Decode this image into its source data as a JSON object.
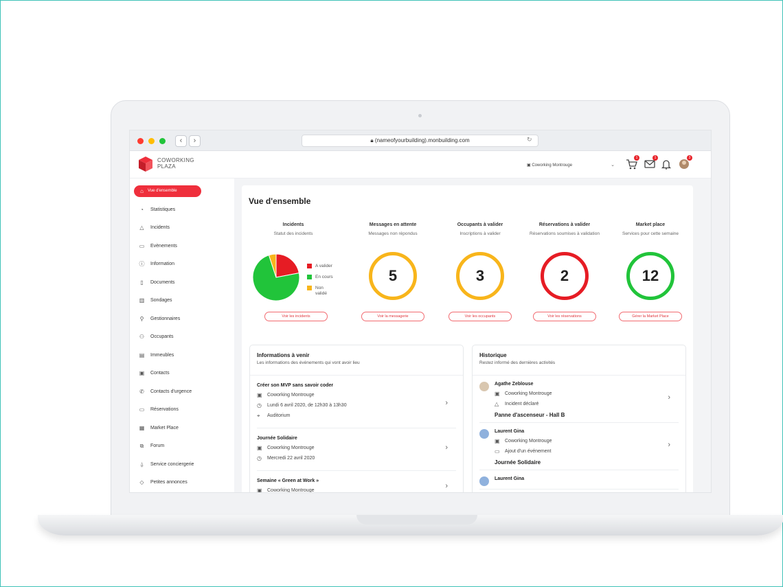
{
  "browser": {
    "url": "(nameofyourbuilding).monbuilding.com"
  },
  "header": {
    "logo_line1": "COWORKING",
    "logo_line2": "PLAZA",
    "building_select": "Coworking Montrouge",
    "badges": {
      "cart": "1",
      "mail": "1",
      "avatar": "3"
    }
  },
  "sidebar": {
    "items": [
      {
        "label": "Vue d'ensemble",
        "icon": "home-icon",
        "active": true
      },
      {
        "label": "Statistiques",
        "icon": "chart-icon"
      },
      {
        "label": "Incidents",
        "icon": "warning-icon"
      },
      {
        "label": "Evènements",
        "icon": "calendar-icon"
      },
      {
        "label": "Information",
        "icon": "info-icon"
      },
      {
        "label": "Documents",
        "icon": "document-icon"
      },
      {
        "label": "Sondages",
        "icon": "poll-icon"
      },
      {
        "label": "Gestionnaires",
        "icon": "user-icon"
      },
      {
        "label": "Occupants",
        "icon": "users-icon"
      },
      {
        "label": "Immeubles",
        "icon": "building-icon"
      },
      {
        "label": "Contacts",
        "icon": "contact-icon"
      },
      {
        "label": "Contacts d'urgence",
        "icon": "phone-icon"
      },
      {
        "label": "Réservations",
        "icon": "calendar-icon"
      },
      {
        "label": "Market Place",
        "icon": "shop-icon"
      },
      {
        "label": "Forum",
        "icon": "forum-icon"
      },
      {
        "label": "Service conciergerie",
        "icon": "bell-icon"
      },
      {
        "label": "Petites annonces",
        "icon": "tag-icon"
      }
    ]
  },
  "main": {
    "title": "Vue d'ensemble",
    "stats": [
      {
        "title": "Incidents",
        "subtitle": "Statut des incidents",
        "button": "Voir les incidents"
      },
      {
        "title": "Messages en attente",
        "subtitle": "Messages non répondus",
        "value": "5",
        "button": "Voir la messagerie",
        "color": "#f8b51b"
      },
      {
        "title": "Occupants à valider",
        "subtitle": "Inscriptions à valider",
        "value": "3",
        "button": "Voir les occupants",
        "color": "#f8b51b"
      },
      {
        "title": "Réservations à valider",
        "subtitle": "Réservations soumises à validation",
        "value": "2",
        "button": "Voir les réservations",
        "color": "#e61c24"
      },
      {
        "title": "Market place",
        "subtitle": "Services pour cette semaine",
        "value": "12",
        "button": "Gérer la Market Place",
        "color": "#21c43a"
      }
    ],
    "incidents_legend": [
      {
        "label": "A valider",
        "color": "#e61c24"
      },
      {
        "label": "En cours",
        "color": "#21c43a"
      },
      {
        "label": "Non validé",
        "color": "#f8b51b"
      }
    ]
  },
  "chart_data": {
    "type": "pie",
    "categories": [
      "A valider",
      "En cours",
      "Non validé"
    ],
    "values": [
      22,
      73,
      5
    ],
    "colors": [
      "#e61c24",
      "#21c43a",
      "#f8b51b"
    ]
  },
  "infos": {
    "title": "Informations à venir",
    "subtitle": "Les informations des événements qui vont avoir lieu",
    "events": [
      {
        "title": "Créer son MVP sans savoir coder",
        "place": "Coworking Montrouge",
        "date": "Lundi 6 avril 2020, de 12h30 à 13h30",
        "room": "Auditorium"
      },
      {
        "title": "Journée Solidaire",
        "place": "Coworking Montrouge",
        "date": "Mercredi 22 avril 2020"
      },
      {
        "title": "Semaine « Green at Work »",
        "place": "Coworking Montrouge"
      }
    ]
  },
  "history": {
    "title": "Historique",
    "subtitle": "Restez informé des dernières activités",
    "items": [
      {
        "name": "Agathe Zeblouse",
        "place": "Coworking Montrouge",
        "action": "Incident déclaré",
        "subject": "Panne d'ascenseur - Hall B"
      },
      {
        "name": "Laurent Gina",
        "place": "Coworking Montrouge",
        "action": "Ajout d'un événement",
        "subject": "Journée Solidaire"
      },
      {
        "name": "Laurent Gina"
      }
    ]
  }
}
